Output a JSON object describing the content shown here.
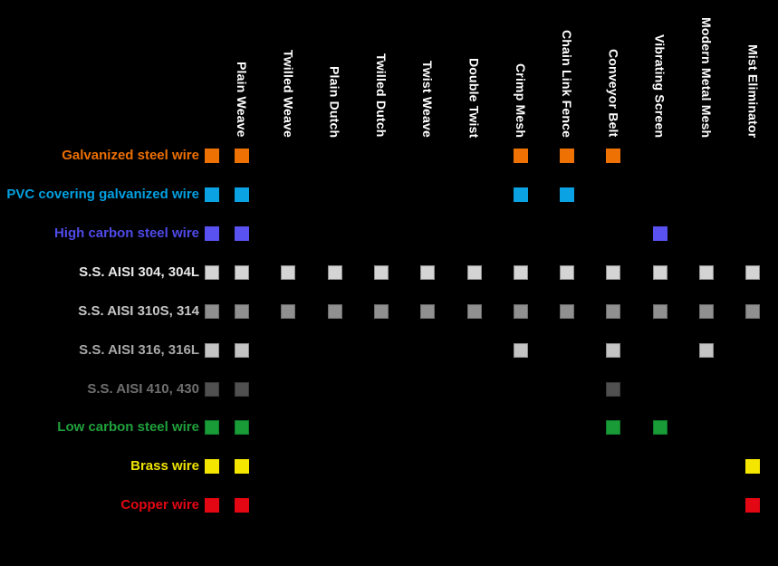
{
  "chart_data": {
    "type": "heatmap",
    "legend_position": "left-of-rows",
    "grid": false,
    "background_color": "#000000",
    "column_header_color": "#ffffff",
    "columns": [
      "Plain Weave",
      "Twilled Weave",
      "Plain Dutch",
      "Twilled Dutch",
      "Twist Weave",
      "Double Twist",
      "Crimp Mesh",
      "Chain Link Fence",
      "Conveyor Belt",
      "Vibrating Screen",
      "Modern Metal Mesh",
      "Mist Eliminator"
    ],
    "rows": [
      {
        "label": "Galvanized steel wire",
        "label_color": "#ed6f00",
        "square_fill": "#ee7203",
        "square_border": "#ee7203",
        "cells": [
          "Plain Weave",
          "Crimp Mesh",
          "Chain Link Fence",
          "Conveyor Belt"
        ]
      },
      {
        "label": "PVC covering galvanized wire",
        "label_color": "#00a0e1",
        "square_fill": "#0aa2e2",
        "square_border": "#0aa2e2",
        "cells": [
          "Plain Weave",
          "Crimp Mesh",
          "Chain Link Fence"
        ]
      },
      {
        "label": "High carbon steel wire",
        "label_color": "#4f4ae8",
        "square_fill": "#5a52f0",
        "square_border": "#5a52f0",
        "cells": [
          "Plain Weave",
          "Vibrating Screen"
        ]
      },
      {
        "label": "S.S. AISI 304, 304L",
        "label_color": "#e8e8e8",
        "square_fill": "#d4d4d4",
        "square_border": "#8c8c8c",
        "cells": [
          "Plain Weave",
          "Twilled Weave",
          "Plain Dutch",
          "Twilled Dutch",
          "Twist Weave",
          "Double Twist",
          "Crimp Mesh",
          "Chain Link Fence",
          "Conveyor Belt",
          "Vibrating Screen",
          "Modern Metal Mesh",
          "Mist Eliminator"
        ]
      },
      {
        "label": "S.S. AISI 310S, 314",
        "label_color": "#c6c6c6",
        "square_fill": "#909090",
        "square_border": "#6a6a6a",
        "cells": [
          "Plain Weave",
          "Twilled Weave",
          "Plain Dutch",
          "Twilled Dutch",
          "Twist Weave",
          "Double Twist",
          "Crimp Mesh",
          "Chain Link Fence",
          "Conveyor Belt",
          "Vibrating Screen",
          "Modern Metal Mesh",
          "Mist Eliminator"
        ]
      },
      {
        "label": "S.S. AISI 316, 316L",
        "label_color": "#a8a8a8",
        "square_fill": "#c4c4c4",
        "square_border": "#8c8c8c",
        "cells": [
          "Plain Weave",
          "Crimp Mesh",
          "Conveyor Belt",
          "Modern Metal Mesh"
        ]
      },
      {
        "label": "S.S. AISI 410, 430",
        "label_color": "#6f6f6f",
        "square_fill": "#505050",
        "square_border": "#3a3a3a",
        "cells": [
          "Plain Weave",
          "Conveyor Belt"
        ]
      },
      {
        "label": "Low carbon steel wire",
        "label_color": "#1fa13c",
        "square_fill": "#199c38",
        "square_border": "#0f7a2a",
        "cells": [
          "Plain Weave",
          "Conveyor Belt",
          "Vibrating Screen"
        ]
      },
      {
        "label": "Brass wire",
        "label_color": "#f0e400",
        "square_fill": "#f5e600",
        "square_border": "#f5e600",
        "cells": [
          "Plain Weave",
          "Mist Eliminator"
        ]
      },
      {
        "label": "Copper wire",
        "label_color": "#e30613",
        "square_fill": "#e30613",
        "square_border": "#e30613",
        "cells": [
          "Plain Weave",
          "Mist Eliminator"
        ]
      }
    ]
  }
}
